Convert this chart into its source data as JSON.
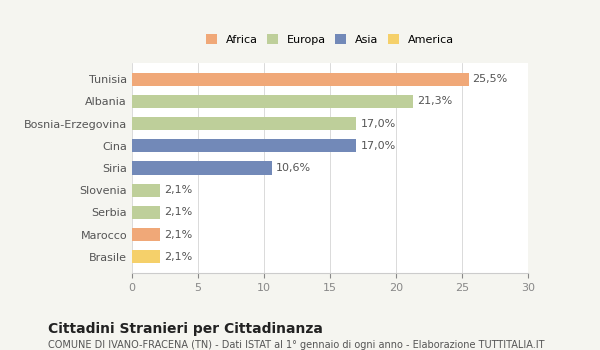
{
  "categories": [
    "Tunisia",
    "Albania",
    "Bosnia-Erzegovina",
    "Cina",
    "Siria",
    "Slovenia",
    "Serbia",
    "Marocco",
    "Brasile"
  ],
  "values": [
    25.5,
    21.3,
    17.0,
    17.0,
    10.6,
    2.1,
    2.1,
    2.1,
    2.1
  ],
  "labels": [
    "25,5%",
    "21,3%",
    "17,0%",
    "17,0%",
    "10,6%",
    "2,1%",
    "2,1%",
    "2,1%",
    "2,1%"
  ],
  "colors": [
    "#F0A878",
    "#BECF9A",
    "#BECF9A",
    "#7289B8",
    "#7289B8",
    "#BECF9A",
    "#BECF9A",
    "#F0A878",
    "#F5D06A"
  ],
  "continents": [
    "Africa",
    "Europa",
    "Europa",
    "Asia",
    "Asia",
    "Europa",
    "Europa",
    "Africa",
    "America"
  ],
  "legend": [
    {
      "label": "Africa",
      "color": "#F0A878"
    },
    {
      "label": "Europa",
      "color": "#BECF9A"
    },
    {
      "label": "Asia",
      "color": "#7289B8"
    },
    {
      "label": "America",
      "color": "#F5D06A"
    }
  ],
  "xlim": [
    0,
    30
  ],
  "xticks": [
    0,
    5,
    10,
    15,
    20,
    25,
    30
  ],
  "title": "Cittadini Stranieri per Cittadinanza",
  "subtitle": "COMUNE DI IVANO-FRACENA (TN) - Dati ISTAT al 1° gennaio di ogni anno - Elaborazione TUTTITALIA.IT",
  "bg_color": "#f5f5f0",
  "bar_bg_color": "#ffffff",
  "label_fontsize": 8,
  "tick_fontsize": 8,
  "title_fontsize": 10,
  "subtitle_fontsize": 7
}
